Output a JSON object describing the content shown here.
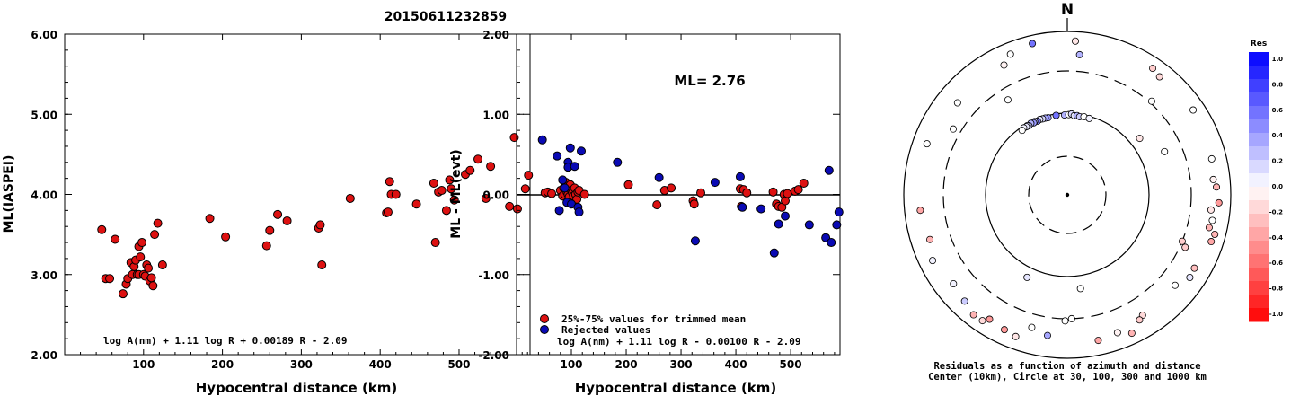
{
  "event_id": "20150611232859",
  "chart_data": [
    {
      "type": "scatter",
      "title": "",
      "xlabel": "Hypocentral distance (km)",
      "ylabel": "ML(IASPEI)",
      "xlim": [
        0,
        590
      ],
      "ylim": [
        2.0,
        6.0
      ],
      "x_ticks": [
        "100",
        "200",
        "300",
        "400",
        "500"
      ],
      "y_ticks": [
        "2.00",
        "3.00",
        "4.00",
        "5.00",
        "6.00"
      ],
      "formula": "log A(nm) + 1.11 log R + 0.00189 R - 2.09",
      "series": [
        {
          "color": "#dd1111",
          "x": [
            47,
            52,
            57,
            64,
            74,
            78,
            80,
            84,
            86,
            88,
            90,
            92,
            94,
            94,
            96,
            98,
            100,
            102,
            104,
            106,
            108,
            110,
            112,
            114,
            118,
            124,
            184,
            204,
            256,
            260,
            270,
            282,
            322,
            324,
            326,
            362,
            408,
            410,
            412,
            414,
            420,
            446,
            468,
            470,
            474,
            478,
            484,
            488,
            490,
            494,
            508,
            514,
            524,
            534,
            540,
            564,
            570,
            574,
            584,
            588
          ],
          "y": [
            3.56,
            2.95,
            2.95,
            3.44,
            2.76,
            2.88,
            2.95,
            3.15,
            3.0,
            3.1,
            3.18,
            3.0,
            3.0,
            3.35,
            3.22,
            3.4,
            3.0,
            2.98,
            3.12,
            3.08,
            2.92,
            2.96,
            2.86,
            3.5,
            3.64,
            3.12,
            3.7,
            3.47,
            3.36,
            3.55,
            3.75,
            3.67,
            3.58,
            3.62,
            3.12,
            3.95,
            3.77,
            3.78,
            4.16,
            4.0,
            4.0,
            3.88,
            4.14,
            3.4,
            4.03,
            4.05,
            3.8,
            4.18,
            4.07,
            3.93,
            4.25,
            4.3,
            4.44,
            3.95,
            4.35,
            3.85,
            4.71,
            3.82,
            4.07,
            4.24
          ]
        }
      ]
    },
    {
      "type": "scatter",
      "title": "",
      "annotation": "ML= 2.76",
      "xlabel": "Hypocentral distance (km)",
      "ylabel": "ML - ML(evt)",
      "xlim": [
        0,
        590
      ],
      "ylim": [
        -2.0,
        2.0
      ],
      "x_ticks": [
        "100",
        "200",
        "300",
        "400",
        "500"
      ],
      "y_ticks": [
        "-2.00",
        "-1.00",
        "0.00",
        "1.00",
        "2.00"
      ],
      "formula": "log A(nm) + 1.11 log R - 0.00100 R - 2.09",
      "legend": [
        "25%-75% values for trimmed mean",
        "Rejected values"
      ],
      "legend_position": "bottom-left",
      "series": [
        {
          "name": "25%-75% values for trimmed mean",
          "color": "#dd1111",
          "x": [
            52,
            57,
            64,
            80,
            84,
            86,
            88,
            90,
            92,
            94,
            96,
            98,
            100,
            102,
            104,
            106,
            108,
            110,
            112,
            114,
            124,
            204,
            256,
            270,
            282,
            322,
            324,
            336,
            408,
            410,
            414,
            420,
            468,
            474,
            478,
            484,
            488,
            490,
            494,
            508,
            514,
            524
          ],
          "y": [
            0.02,
            0.03,
            0.01,
            0.05,
            -0.02,
            0.08,
            0.0,
            0.15,
            0.03,
            0.0,
            -0.03,
            0.12,
            0.05,
            0.02,
            -0.02,
            0.08,
            0.0,
            -0.06,
            0.03,
            0.05,
            0.0,
            0.12,
            -0.13,
            0.05,
            0.08,
            -0.08,
            -0.12,
            0.02,
            0.07,
            -0.15,
            0.06,
            0.02,
            0.03,
            -0.12,
            -0.15,
            -0.16,
            0.0,
            -0.08,
            0.01,
            0.04,
            0.06,
            0.14
          ]
        },
        {
          "name": "Rejected values",
          "color": "#0a0ab4",
          "x": [
            47,
            74,
            78,
            84,
            88,
            92,
            94,
            94,
            98,
            100,
            106,
            112,
            114,
            118,
            184,
            260,
            362,
            326,
            408,
            412,
            446,
            470,
            478,
            490,
            534,
            564,
            570,
            574,
            584,
            588
          ],
          "y": [
            0.68,
            0.48,
            -0.2,
            0.18,
            0.08,
            -0.1,
            0.4,
            0.34,
            0.58,
            -0.12,
            0.35,
            -0.16,
            -0.22,
            0.54,
            0.4,
            0.21,
            0.15,
            -0.58,
            0.22,
            -0.16,
            -0.18,
            -0.73,
            -0.37,
            -0.27,
            -0.38,
            -0.54,
            0.3,
            -0.6,
            -0.38,
            -0.22
          ]
        }
      ]
    },
    {
      "type": "scatter",
      "subtype": "polar",
      "north_label": "N",
      "caption_line1": "Residuals as a function of azimuth and distance",
      "caption_line2": "Center (10km), Circle at 30, 100, 300 and 1000 km",
      "colorbar_title": "Res",
      "colorbar_ticks": [
        "1.0",
        "0.8",
        "0.6",
        "0.4",
        "0.2",
        "0.0",
        "-0.2",
        "-0.4",
        "-0.6",
        "-0.8",
        "-1.0"
      ],
      "rings_km": [
        30,
        100,
        300,
        1000
      ],
      "series": [
        {
          "name": "stations",
          "azimuth_deg": [
            358,
            352,
            346,
            344,
            342,
            340,
            338,
            336,
            335,
            333,
            331,
            330,
            329,
            327,
            325,
            1,
            3,
            5,
            7,
            9,
            12,
            16,
            5,
            334,
            290,
            310,
            347,
            338,
            3,
            328,
            300,
            34,
            38,
            42,
            56,
            52,
            66,
            76,
            84,
            87,
            93,
            96,
            100,
            103,
            105,
            108,
            112,
            114,
            120,
            124,
            130,
            148,
            150,
            155,
            160,
            168,
            172,
            178,
            181,
            188,
            195,
            200,
            205,
            206,
            212,
            214,
            218,
            224,
            232,
            244,
            252,
            264
          ],
          "distance_km": [
            95,
            96,
            94,
            95,
            95,
            96,
            94,
            96,
            94,
            96,
            93,
            95,
            94,
            95,
            92,
            96,
            98,
            94,
            95,
            93,
            95,
            94,
            500,
            560,
            650,
            540,
            780,
            700,
            750,
            220,
            380,
            720,
            660,
            320,
            700,
            130,
            190,
            640,
            600,
            650,
            700,
            560,
            610,
            580,
            720,
            690,
            300,
            350,
            600,
            620,
            500,
            520,
            560,
            720,
            600,
            640,
            140,
            300,
            320,
            520,
            450,
            680,
            640,
            130,
            600,
            700,
            710,
            620,
            560,
            660,
            560,
            620
          ],
          "residual": [
            0.3,
            0.55,
            0.4,
            0.35,
            0.15,
            0.1,
            0.5,
            0.2,
            0.4,
            0.3,
            0.2,
            0.15,
            0.1,
            0.05,
            0.0,
            0.0,
            0.15,
            0.1,
            0.3,
            0.2,
            0.0,
            0.05,
            0.3,
            -0.05,
            0.0,
            0.0,
            0.55,
            0.0,
            -0.1,
            0.0,
            0.0,
            -0.2,
            -0.15,
            0.0,
            0.0,
            -0.1,
            0.0,
            0.0,
            -0.05,
            -0.3,
            -0.4,
            -0.1,
            0.0,
            -0.3,
            -0.3,
            -0.35,
            -0.2,
            -0.2,
            -0.25,
            0.1,
            0.0,
            -0.15,
            -0.2,
            -0.3,
            -0.05,
            -0.35,
            0.0,
            0.0,
            0.0,
            0.35,
            0.0,
            -0.1,
            -0.4,
            0.1,
            -0.4,
            -0.15,
            -0.3,
            0.2,
            0.05,
            0.05,
            -0.3,
            -0.35
          ]
        }
      ]
    }
  ]
}
